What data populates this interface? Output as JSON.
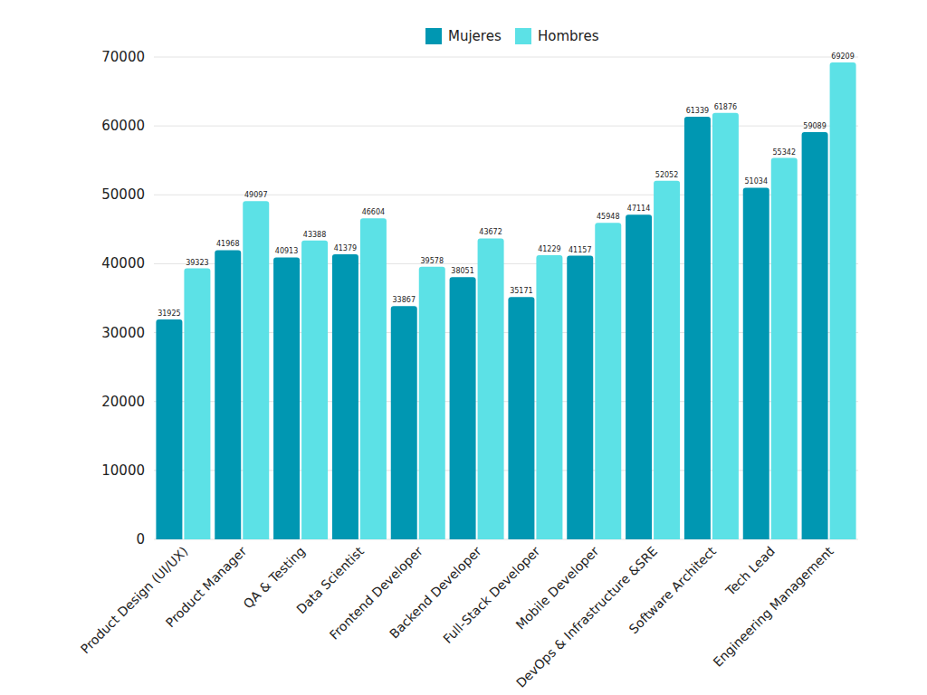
{
  "chart_data": {
    "type": "bar",
    "categories": [
      "Product Design (UI/UX)",
      "Product Manager",
      "QA & Testing",
      "Data Scientist",
      "Frontend Developer",
      "Backend Developer",
      "Full-Stack Developer",
      "Mobile Developer",
      "DevOps & Infrastructure &SRE",
      "Software Architect",
      "Tech Lead",
      "Engineering Management"
    ],
    "series": [
      {
        "name": "Mujeres",
        "color": "#0097b2",
        "values": [
          31925,
          41968,
          40913,
          41379,
          33867,
          38051,
          35171,
          41157,
          47114,
          61339,
          51034,
          59089
        ]
      },
      {
        "name": "Hombres",
        "color": "#5ce1e6",
        "values": [
          39323,
          49097,
          43388,
          46604,
          39578,
          43672,
          41229,
          45948,
          52052,
          61876,
          55342,
          69209
        ]
      }
    ],
    "ylim": [
      0,
      70000
    ],
    "yticks": [
      0,
      10000,
      20000,
      30000,
      40000,
      50000,
      60000,
      70000
    ],
    "grid": true,
    "legend": "top",
    "data_labels": true
  }
}
